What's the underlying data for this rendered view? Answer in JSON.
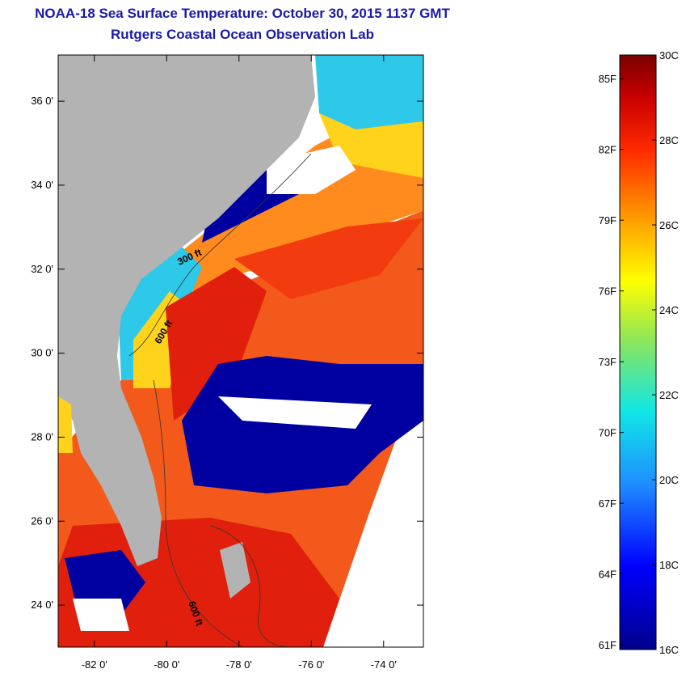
{
  "title": "NOAA-18 Sea Surface Temperature:  October 30, 2015 1137 GMT",
  "subtitle": "Rutgers Coastal Ocean Observation Lab",
  "map": {
    "lon_range": [
      -83.0,
      -72.9
    ],
    "lat_range": [
      23.0,
      37.1
    ],
    "lat_labels": [
      "36 0'",
      "34 0'",
      "32 0'",
      "30 0'",
      "28 0'",
      "26 0'",
      "24 0'"
    ],
    "lat_values": [
      36,
      34,
      32,
      30,
      28,
      26,
      24
    ],
    "lon_labels": [
      "-82 0'",
      "-80 0'",
      "-78 0'",
      "-76 0'",
      "-74 0'"
    ],
    "lon_values": [
      -82,
      -80,
      -78,
      -76,
      -74
    ],
    "contour_labels": [
      "300 ft",
      "600 ft",
      "600 ft"
    ],
    "colors": {
      "land": "#b3b3b3",
      "cloud": "#ffffff",
      "cold": "#0000a0",
      "warm": "#f23c10",
      "hot": "#e0200d",
      "orange": "#ff8a1e",
      "yellow": "#ffd21c",
      "cyan": "#2ec8e8"
    }
  },
  "colorbar": {
    "celsius_labels": [
      "30C",
      "28C",
      "26C",
      "24C",
      "22C",
      "20C",
      "18C",
      "16C"
    ],
    "fahrenheit_labels": [
      "85F",
      "82F",
      "79F",
      "76F",
      "73F",
      "70F",
      "67F",
      "64F",
      "61F"
    ],
    "fahrenheit_values": [
      85,
      82,
      79,
      76,
      73,
      70,
      67,
      64,
      61
    ],
    "range_c": [
      16,
      30
    ]
  }
}
